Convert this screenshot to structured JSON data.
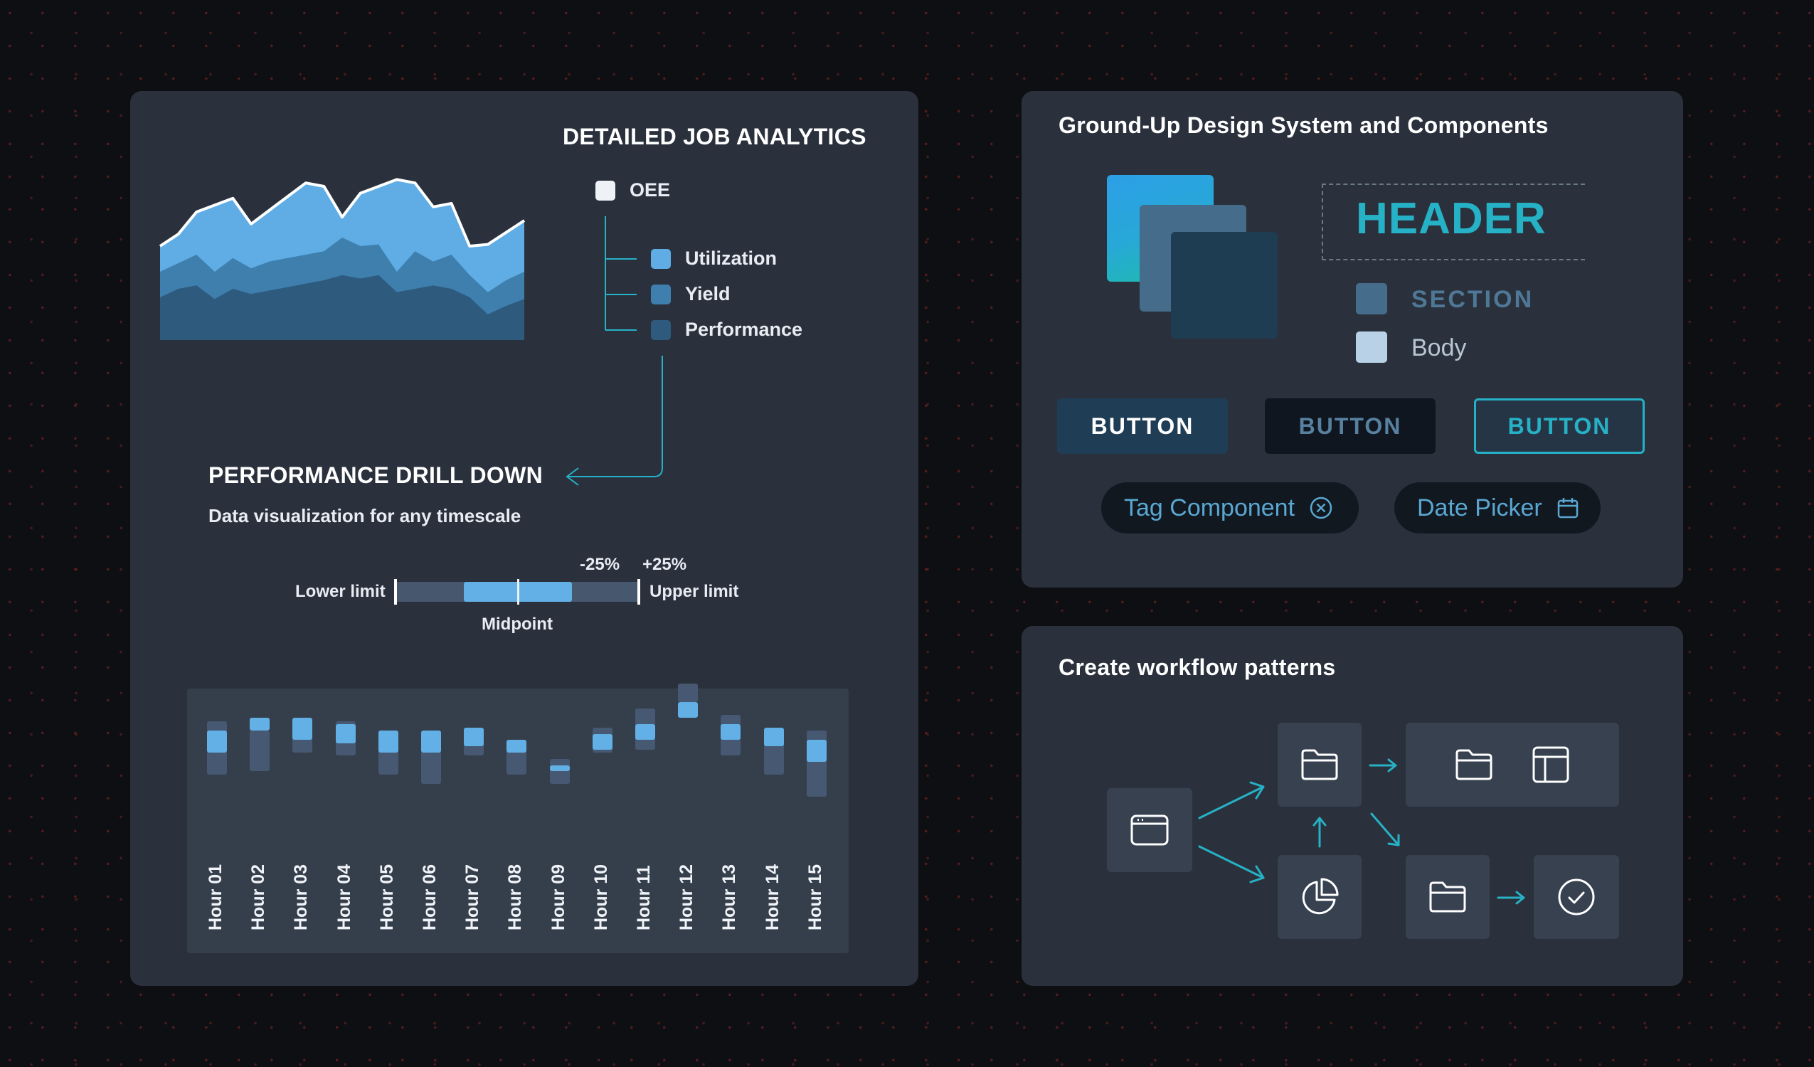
{
  "analytics": {
    "title": "DETAILED JOB ANALYTICS",
    "legend": {
      "root": "OEE",
      "items": [
        {
          "label": "Utilization",
          "color": "#5fade4"
        },
        {
          "label": "Yield",
          "color": "#3e7fae"
        },
        {
          "label": "Performance",
          "color": "#2e5a7d"
        }
      ]
    },
    "drill_title": "PERFORMANCE DRILL DOWN",
    "drill_subtitle": "Data visualization for any timescale",
    "range": {
      "lower_label": "Lower limit",
      "upper_label": "Upper limit",
      "minus_label": "-25%",
      "plus_label": "+25%",
      "mid_label": "Midpoint"
    }
  },
  "chart_data": {
    "type": "bar",
    "categories": [
      "Hour 01",
      "Hour 02",
      "Hour 03",
      "Hour 04",
      "Hour 05",
      "Hour 06",
      "Hour 07",
      "Hour 08",
      "Hour 09",
      "Hour 10",
      "Hour 11",
      "Hour 12",
      "Hour 13",
      "Hour 14",
      "Hour 15"
    ],
    "range_low": [
      170,
      180,
      240,
      230,
      170,
      140,
      230,
      170,
      140,
      240,
      250,
      460,
      230,
      170,
      100
    ],
    "range_high": [
      340,
      310,
      340,
      340,
      300,
      290,
      300,
      250,
      220,
      320,
      380,
      400,
      360,
      310,
      310
    ],
    "core_low": [
      240,
      310,
      280,
      270,
      240,
      240,
      260,
      240,
      180,
      250,
      280,
      350,
      280,
      260,
      210
    ],
    "core_high": [
      310,
      350,
      350,
      330,
      310,
      310,
      320,
      280,
      200,
      300,
      330,
      400,
      330,
      320,
      280
    ],
    "ylim": [
      0,
      480
    ]
  },
  "area_chart": {
    "type": "area",
    "x": [
      0,
      1,
      2,
      3,
      4,
      5,
      6,
      7,
      8,
      9,
      10,
      11,
      12,
      13,
      14,
      15,
      16,
      17,
      18,
      19,
      20
    ],
    "series": [
      {
        "name": "Utilization",
        "values": [
          55,
          62,
          75,
          79,
          83,
          68,
          76,
          84,
          92,
          90,
          72,
          86,
          90,
          94,
          92,
          78,
          80,
          55,
          56,
          63,
          70
        ]
      },
      {
        "name": "Yield",
        "values": [
          40,
          45,
          50,
          40,
          48,
          42,
          46,
          48,
          50,
          52,
          60,
          55,
          56,
          40,
          52,
          46,
          50,
          38,
          28,
          35,
          40
        ]
      },
      {
        "name": "Performance",
        "values": [
          25,
          30,
          32,
          24,
          30,
          27,
          29,
          31,
          33,
          35,
          38,
          36,
          38,
          28,
          30,
          32,
          30,
          25,
          15,
          20,
          24
        ]
      }
    ],
    "colors": [
      "#5fade4",
      "#3e7fae",
      "#2e5a7d"
    ]
  },
  "design": {
    "title": "Ground-Up Design System and Components",
    "header_text": "HEADER",
    "section_text": "SECTION",
    "body_text": "Body",
    "buttons": [
      {
        "label": "BUTTON",
        "style": "filled"
      },
      {
        "label": "BUTTON",
        "style": "dark"
      },
      {
        "label": "BUTTON",
        "style": "outline"
      }
    ],
    "tag_label": "Tag Component",
    "date_label": "Date Picker"
  },
  "workflow": {
    "title": "Create workflow patterns"
  },
  "colors": {
    "accent": "#26b2c6",
    "panel": "#2a313c",
    "background": "#0e0f12"
  }
}
